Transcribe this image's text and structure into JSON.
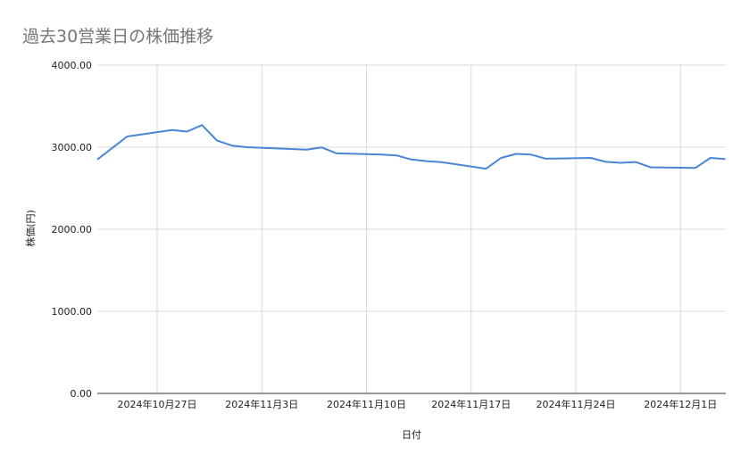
{
  "chart_data": {
    "type": "line",
    "title": "過去30営業日の株価推移",
    "xlabel": "日付",
    "ylabel": "株価(円)",
    "ylim": [
      0,
      4000
    ],
    "yticks": [
      "0.00",
      "1000.00",
      "2000.00",
      "3000.00",
      "4000.00"
    ],
    "xticks": [
      {
        "date": "2024-10-27",
        "label": "2024年10月27日"
      },
      {
        "date": "2024-11-03",
        "label": "2024年11月3日"
      },
      {
        "date": "2024-11-10",
        "label": "2024年11月10日"
      },
      {
        "date": "2024-11-17",
        "label": "2024年11月17日"
      },
      {
        "date": "2024-11-24",
        "label": "2024年11月24日"
      },
      {
        "date": "2024-12-01",
        "label": "2024年12月1日"
      }
    ],
    "xlim": [
      "2024-10-23",
      "2024-12-04"
    ],
    "grid": true,
    "color": "#4a86d4",
    "series": [
      {
        "x": [
          "2024-10-23",
          "2024-10-25",
          "2024-10-28",
          "2024-10-29",
          "2024-10-30",
          "2024-10-31",
          "2024-11-01",
          "2024-11-02",
          "2024-11-06",
          "2024-11-07",
          "2024-11-08",
          "2024-11-11",
          "2024-11-12",
          "2024-11-13",
          "2024-11-14",
          "2024-11-15",
          "2024-11-18",
          "2024-11-19",
          "2024-11-20",
          "2024-11-21",
          "2024-11-22",
          "2024-11-25",
          "2024-11-26",
          "2024-11-27",
          "2024-11-28",
          "2024-11-29",
          "2024-12-02",
          "2024-12-03",
          "2024-12-04"
        ],
        "values": [
          2850,
          3130,
          3210,
          3190,
          3270,
          3080,
          3020,
          3000,
          2970,
          2998,
          2925,
          2910,
          2900,
          2850,
          2830,
          2818,
          2738,
          2870,
          2918,
          2910,
          2860,
          2870,
          2822,
          2810,
          2820,
          2755,
          2748,
          2870,
          2855
        ]
      }
    ]
  }
}
